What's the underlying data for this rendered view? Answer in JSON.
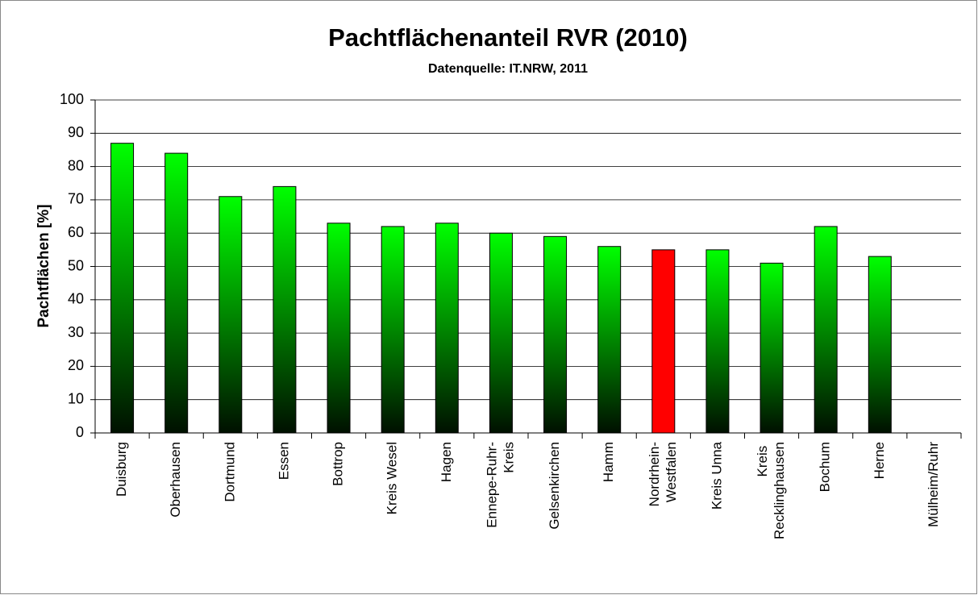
{
  "chart_data": {
    "type": "bar",
    "title": "Pachtflächenanteil RVR (2010)",
    "subtitle": "Datenquelle: IT.NRW, 2011",
    "y_label": "Pachtflächen [%]",
    "categories": [
      "Duisburg",
      "Oberhausen",
      "Dortmund",
      "Essen",
      "Bottrop",
      "Kreis Wesel",
      "Hagen",
      "Ennepe-Ruhr-Kreis",
      "Gelsenkirchen",
      "Hamm",
      "Nordrhein-Westfalen",
      "Kreis Unna",
      "Kreis Recklinghausen",
      "Bochum",
      "Herne",
      "Mülheim/Ruhr"
    ],
    "values": [
      87,
      84,
      71,
      74,
      63,
      62,
      63,
      60,
      59,
      56,
      55,
      55,
      51,
      62,
      53,
      null
    ],
    "color": "#00ff00",
    "gradient_to": "#001000",
    "highlight": "Nordrhein-Westfalen",
    "highlight_color": "#ff0000",
    "ylim": [
      0,
      100
    ],
    "yticks": [
      0,
      10,
      20,
      30,
      40,
      50,
      60,
      70,
      80,
      90,
      100
    ],
    "grid": true
  }
}
